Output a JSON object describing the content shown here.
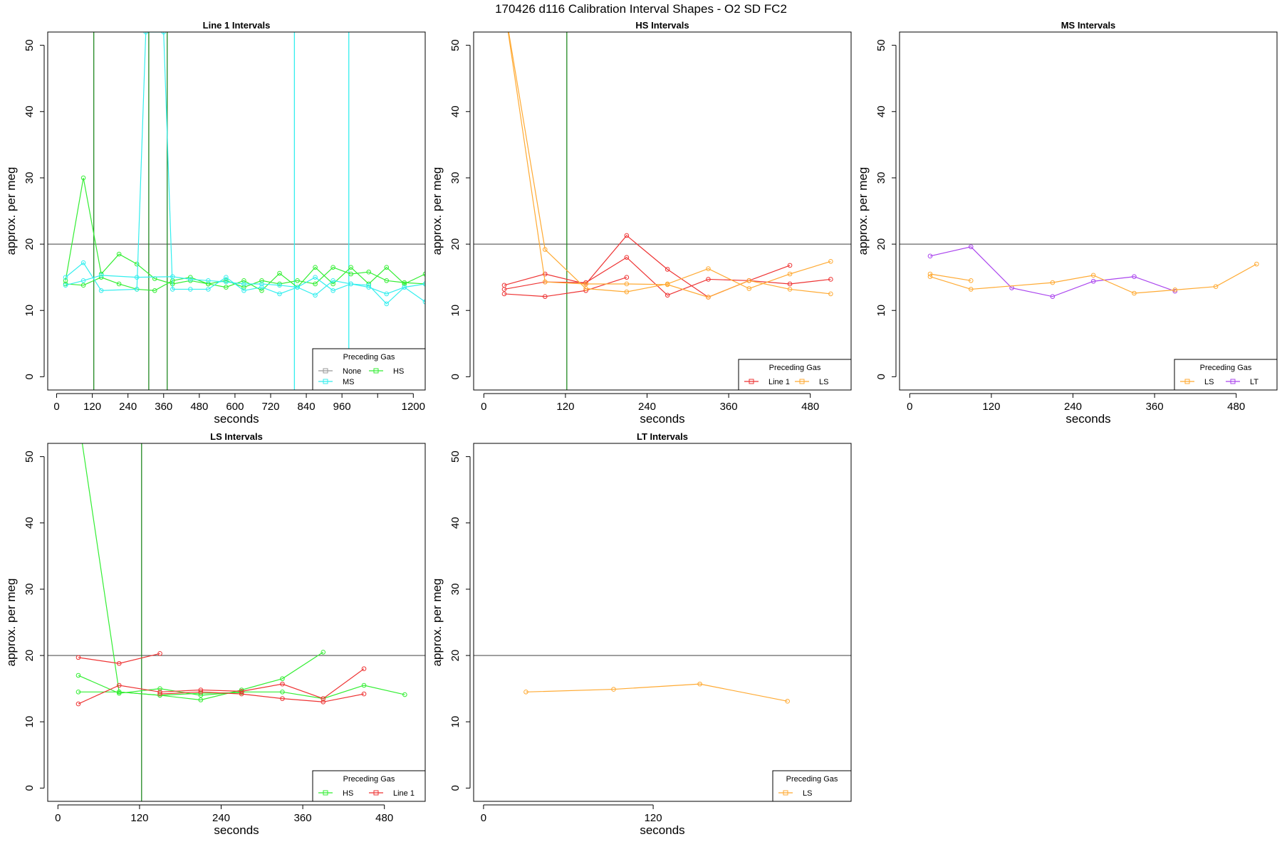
{
  "figure": {
    "title": "170426   d116   Calibration Interval Shapes - O2 SD FC2"
  },
  "colors": {
    "None": "#999999",
    "HS": "#33ee33",
    "MS": "#33eeee",
    "Line 1": "#ee3333",
    "LS": "#ffaa33",
    "LT": "#aa44ee",
    "ref_line": "#555555",
    "vline_green": "#228822",
    "vline_cyan": "#33eeee"
  },
  "chart_data": [
    {
      "type": "line",
      "title": "Line 1 Intervals",
      "xlabel": "seconds",
      "ylabel": "approx. per meg",
      "xlim": [
        -30,
        1240
      ],
      "ylim": [
        -2,
        52
      ],
      "x_ticks": [
        0,
        120,
        240,
        360,
        480,
        600,
        720,
        840,
        960,
        1200
      ],
      "x_tick_marks": [
        0,
        120,
        240,
        360,
        480,
        600,
        720,
        840,
        960,
        1080,
        1200
      ],
      "y_ticks": [
        0,
        10,
        20,
        30,
        40,
        50
      ],
      "hline": 20,
      "vlines": [
        {
          "x": 125,
          "color": "#228822"
        },
        {
          "x": 310,
          "color": "#228822"
        },
        {
          "x": 372,
          "color": "#228822"
        },
        {
          "x": 800,
          "color": "#33eeee"
        },
        {
          "x": 983,
          "color": "#33eeee"
        }
      ],
      "legend": {
        "title": "Preceding Gas",
        "position": "bottom-right",
        "entries": [
          "None",
          "HS",
          "MS"
        ]
      },
      "series": [
        {
          "gas": "HS",
          "x": [
            30,
            90,
            150,
            210,
            270,
            330,
            390,
            450,
            510,
            570,
            630,
            690,
            750,
            810,
            870,
            930,
            990,
            1050,
            1110,
            1170,
            1240
          ],
          "y": [
            14.5,
            30.0,
            15.5,
            18.5,
            17.0,
            14.8,
            14.0,
            14.5,
            14.0,
            13.5,
            14.5,
            13.0,
            15.6,
            13.5,
            16.5,
            14.0,
            16.5,
            14.0,
            16.5,
            14.0,
            15.5
          ]
        },
        {
          "gas": "HS",
          "x": [
            30,
            90,
            150,
            210,
            270,
            330,
            390,
            450,
            510,
            570,
            630,
            690,
            750,
            810,
            870,
            930,
            990,
            1050,
            1110,
            1170,
            1240
          ],
          "y": [
            14.0,
            13.8,
            15.0,
            14.0,
            13.2,
            13.0,
            14.5,
            15.0,
            14.0,
            14.5,
            13.5,
            14.5,
            14.0,
            14.5,
            14.0,
            16.5,
            15.5,
            15.8,
            14.5,
            14.2,
            14.0
          ]
        },
        {
          "gas": "MS",
          "x": [
            30,
            90,
            150,
            270,
            300,
            360,
            390,
            450,
            510,
            570,
            630,
            690,
            750,
            810,
            870,
            930,
            990,
            1050,
            1110,
            1170,
            1240
          ],
          "y": [
            15.0,
            17.2,
            13.0,
            13.2,
            52.0,
            52.0,
            13.2,
            13.2,
            13.2,
            15.0,
            13.0,
            13.5,
            12.5,
            13.5,
            12.3,
            14.5,
            14.0,
            13.5,
            12.5,
            13.5,
            14.0
          ]
        },
        {
          "gas": "MS",
          "x": [
            30,
            90,
            150,
            270,
            390,
            450,
            510,
            570,
            630,
            690,
            750,
            810,
            870,
            930,
            990,
            1050,
            1110,
            1170,
            1240
          ],
          "y": [
            13.8,
            14.5,
            15.3,
            15.0,
            15.1,
            14.7,
            14.5,
            14.3,
            14.0,
            14.0,
            13.8,
            13.5,
            15.0,
            13.0,
            14.0,
            13.8,
            11.0,
            13.5,
            11.3
          ]
        }
      ]
    },
    {
      "type": "line",
      "title": "HS Intervals",
      "xlabel": "seconds",
      "ylabel": "approx. per meg",
      "xlim": [
        -15,
        540
      ],
      "ylim": [
        -2,
        52
      ],
      "x_ticks": [
        0,
        120,
        240,
        360,
        480
      ],
      "x_tick_marks": [
        0,
        120,
        240,
        360,
        480
      ],
      "y_ticks": [
        0,
        10,
        20,
        30,
        40,
        50
      ],
      "hline": 20,
      "vlines": [
        {
          "x": 122,
          "color": "#228822"
        }
      ],
      "legend": {
        "title": "Preceding Gas",
        "position": "bottom-right",
        "entries": [
          "Line 1",
          "LS"
        ]
      },
      "series": [
        {
          "gas": "Line 1",
          "x": [
            30,
            90,
            150,
            210,
            270,
            330,
            390,
            450,
            510
          ],
          "y": [
            13.8,
            15.5,
            14.0,
            21.3,
            16.2,
            12.0,
            14.5,
            16.8,
            null
          ]
        },
        {
          "gas": "Line 1",
          "x": [
            30,
            90,
            150,
            210,
            270,
            330,
            390,
            450,
            510
          ],
          "y": [
            13.2,
            14.3,
            14.2,
            18.0,
            12.3,
            14.7,
            14.5,
            14.0,
            14.7
          ]
        },
        {
          "gas": "Line 1",
          "x": [
            30,
            90,
            150,
            210
          ],
          "y": [
            12.5,
            12.1,
            13.0,
            15.0
          ]
        },
        {
          "gas": "LS",
          "x": [
            30,
            90,
            150,
            210,
            270,
            330,
            390,
            450,
            510
          ],
          "y": [
            56.0,
            19.2,
            13.3,
            12.8,
            14.0,
            16.3,
            13.3,
            15.5,
            17.4
          ]
        },
        {
          "gas": "LS",
          "x": [
            30,
            90,
            150,
            210,
            270,
            330,
            390,
            450,
            510
          ],
          "y": [
            56.0,
            14.3,
            14.0,
            14.0,
            13.9,
            12.0,
            14.5,
            13.2,
            12.5
          ]
        }
      ]
    },
    {
      "type": "line",
      "title": "MS Intervals",
      "xlabel": "seconds",
      "ylabel": "approx. per meg",
      "xlim": [
        -15,
        540
      ],
      "ylim": [
        -2,
        52
      ],
      "x_ticks": [
        0,
        120,
        240,
        360,
        480
      ],
      "x_tick_marks": [
        0,
        120,
        240,
        360,
        480
      ],
      "y_ticks": [
        0,
        10,
        20,
        30,
        40,
        50
      ],
      "hline": 20,
      "vlines": [],
      "legend": {
        "title": "Preceding Gas",
        "position": "bottom-right",
        "entries": [
          "LS",
          "LT"
        ]
      },
      "series": [
        {
          "gas": "LT",
          "x": [
            30,
            90,
            150,
            210,
            270,
            330,
            390
          ],
          "y": [
            18.2,
            19.6,
            13.4,
            12.1,
            14.4,
            15.1,
            12.9
          ]
        },
        {
          "gas": "LS",
          "x": [
            30,
            90
          ],
          "y": [
            15.5,
            14.5
          ]
        },
        {
          "gas": "LS",
          "x": [
            30,
            90,
            210,
            270,
            330,
            390,
            450,
            510
          ],
          "y": [
            15.1,
            13.2,
            14.2,
            15.3,
            12.6,
            13.1,
            13.6,
            17.0
          ]
        }
      ]
    },
    {
      "type": "line",
      "title": "LS Intervals",
      "xlabel": "seconds",
      "ylabel": "approx. per meg",
      "xlim": [
        -15,
        540
      ],
      "ylim": [
        -2,
        52
      ],
      "x_ticks": [
        0,
        120,
        240,
        360,
        480
      ],
      "x_tick_marks": [
        0,
        120,
        240,
        360,
        480
      ],
      "y_ticks": [
        0,
        10,
        20,
        30,
        40,
        50
      ],
      "hline": 20,
      "vlines": [
        {
          "x": 123,
          "color": "#228822"
        }
      ],
      "legend": {
        "title": "Preceding Gas",
        "position": "bottom-right",
        "entries": [
          "HS",
          "Line 1"
        ]
      },
      "series": [
        {
          "gas": "HS",
          "x": [
            30,
            90,
            150,
            210,
            270,
            330,
            390
          ],
          "y": [
            56.0,
            14.5,
            14.0,
            13.3,
            14.8,
            16.5,
            20.5
          ]
        },
        {
          "gas": "HS",
          "x": [
            30,
            90,
            150,
            210,
            270,
            330,
            390,
            450,
            510
          ],
          "y": [
            17.0,
            14.3,
            15.0,
            14.0,
            14.5,
            14.5,
            13.5,
            15.5,
            14.1
          ]
        },
        {
          "gas": "HS",
          "x": [
            30,
            90,
            150,
            210,
            270
          ],
          "y": [
            14.5,
            14.5,
            14.0,
            14.3,
            14.4
          ]
        },
        {
          "gas": "Line 1",
          "x": [
            30,
            90,
            150
          ],
          "y": [
            19.7,
            18.8,
            20.3
          ]
        },
        {
          "gas": "Line 1",
          "x": [
            30,
            90,
            150,
            210,
            270,
            330,
            390,
            450
          ],
          "y": [
            12.7,
            15.5,
            14.5,
            14.8,
            14.6,
            15.7,
            13.5,
            18.0
          ]
        },
        {
          "gas": "Line 1",
          "x": [
            150,
            210,
            270,
            330,
            390,
            450
          ],
          "y": [
            14.2,
            14.5,
            14.2,
            13.5,
            13.0,
            14.2
          ]
        }
      ]
    },
    {
      "type": "line",
      "title": "LT Intervals",
      "xlabel": "seconds",
      "ylabel": "approx. per meg",
      "xlim": [
        -7,
        260
      ],
      "ylim": [
        -2,
        52
      ],
      "x_ticks": [
        0,
        120
      ],
      "x_tick_marks": [
        0,
        120
      ],
      "y_ticks": [
        0,
        10,
        20,
        30,
        40,
        50
      ],
      "hline": 20,
      "vlines": [],
      "legend": {
        "title": "Preceding Gas",
        "position": "bottom-right",
        "entries": [
          "LS"
        ]
      },
      "series": [
        {
          "gas": "LS",
          "x": [
            30,
            92,
            153,
            215
          ],
          "y": [
            14.5,
            14.9,
            15.7,
            13.1
          ]
        }
      ]
    }
  ]
}
